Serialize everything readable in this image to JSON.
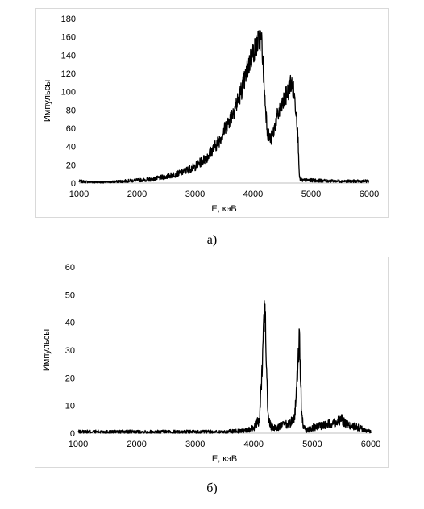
{
  "chart_data": [
    {
      "type": "line",
      "xlabel": "E, кэВ",
      "ylabel": "Импульсы",
      "xlim": [
        1000,
        6000
      ],
      "ylim": [
        0,
        180
      ],
      "xticks": [
        1000,
        2000,
        3000,
        4000,
        5000,
        6000
      ],
      "yticks": [
        0,
        20,
        40,
        60,
        80,
        100,
        120,
        140,
        160,
        180
      ],
      "caption": "а)",
      "grid": false,
      "legend": "none",
      "color": "#000000",
      "series": [
        {
          "x": [
            1000,
            1250,
            1500,
            1750,
            2000,
            2250,
            2500,
            2750,
            3000,
            3200,
            3400,
            3600,
            3750,
            3850,
            3950,
            4050,
            4120,
            4150,
            4200,
            4250,
            4300,
            4350,
            4400,
            4500,
            4600,
            4650,
            4700,
            4750,
            4780,
            4800,
            4850,
            5000,
            5500,
            6000
          ],
          "y": [
            2,
            1,
            1,
            2,
            3,
            4,
            7,
            11,
            18,
            28,
            45,
            70,
            92,
            112,
            135,
            150,
            158,
            155,
            95,
            55,
            47,
            55,
            70,
            85,
            100,
            110,
            100,
            75,
            40,
            5,
            3,
            3,
            2,
            2
          ]
        }
      ]
    },
    {
      "type": "line",
      "xlabel": "E, кэВ",
      "ylabel": "Импульсы",
      "xlim": [
        1000,
        6000
      ],
      "ylim": [
        0,
        60
      ],
      "xticks": [
        1000,
        2000,
        3000,
        4000,
        5000,
        6000
      ],
      "yticks": [
        0,
        10,
        20,
        30,
        40,
        50,
        60
      ],
      "caption": "б)",
      "grid": false,
      "legend": "none",
      "color": "#000000",
      "series": [
        {
          "x": [
            1000,
            1500,
            2000,
            2500,
            3000,
            3500,
            3900,
            4000,
            4100,
            4150,
            4180,
            4200,
            4220,
            4250,
            4300,
            4400,
            4500,
            4600,
            4700,
            4750,
            4780,
            4800,
            4820,
            4850,
            4900,
            5000,
            5200,
            5400,
            5500,
            5600,
            5800,
            5900,
            6000
          ],
          "y": [
            0.5,
            0.5,
            0.5,
            0.5,
            0.5,
            0.5,
            1,
            2,
            5,
            25,
            48,
            40,
            20,
            5,
            2,
            2,
            3,
            3,
            6,
            22,
            35,
            20,
            6,
            2,
            1,
            2,
            3,
            4,
            5,
            3,
            2,
            1,
            0.5
          ]
        }
      ]
    }
  ]
}
